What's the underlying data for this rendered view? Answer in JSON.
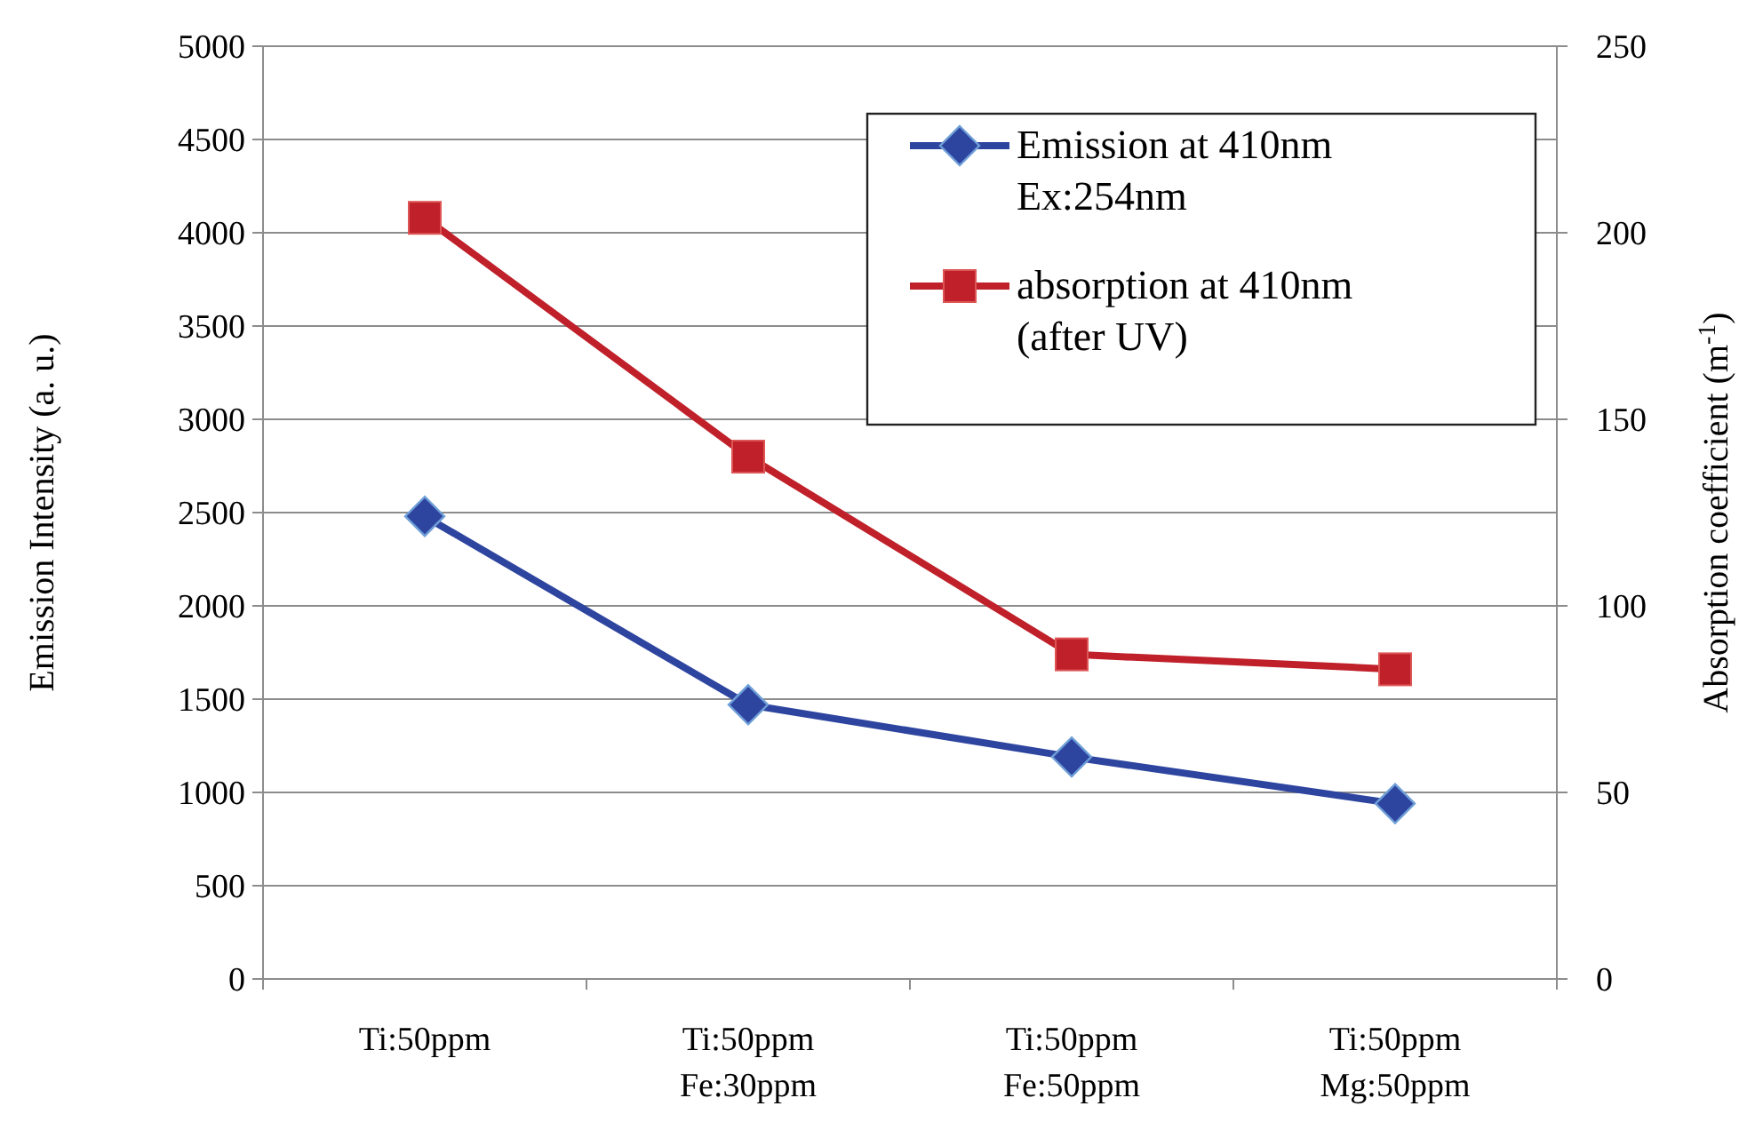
{
  "chart_data": {
    "type": "line",
    "categories": [
      "Ti:50ppm",
      "Ti:50ppm\nFe:30ppm",
      "Ti:50ppm\nFe:50ppm",
      "Ti:50ppm\nMg:50ppm"
    ],
    "ylabel": "Emission Intensity (a. u.)",
    "y2label": "Absorption coefficient (m$^{-1}$)",
    "ylim": [
      0,
      5000
    ],
    "yticks": [
      0,
      500,
      1000,
      1500,
      2000,
      2500,
      3000,
      3500,
      4000,
      4500,
      5000
    ],
    "y2lim": [
      0,
      250
    ],
    "y2ticks": [
      0,
      50,
      100,
      150,
      200,
      250
    ],
    "grid": "y",
    "legend": "top right",
    "series": [
      {
        "name": "Emission at 410nm\nEx:254nm",
        "color": "#2e45a0",
        "values": [
          2480,
          1470,
          1190,
          940
        ],
        "marker": "diamond"
      },
      {
        "name": "absorption at 410nm\n(after UV)",
        "color": "#c0202a",
        "values": [
          204,
          140,
          87,
          83
        ],
        "marker": "square",
        "axis": "y2"
      }
    ]
  }
}
